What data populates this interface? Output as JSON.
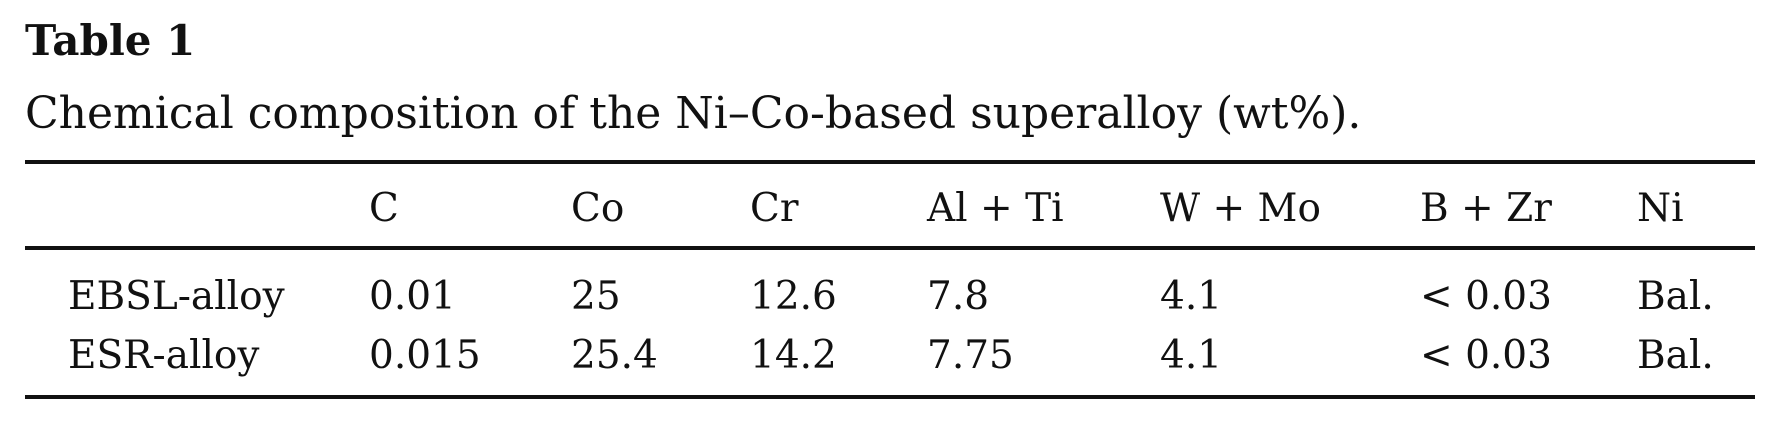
{
  "table": {
    "label": "Table 1",
    "caption": "Chemical composition of the Ni–Co-based superalloy (wt%).",
    "columns": [
      "",
      "C",
      "Co",
      "Cr",
      "Al + Ti",
      "W + Mo",
      "B + Zr",
      "Ni"
    ],
    "rows": [
      [
        "EBSL-alloy",
        "0.01",
        "25",
        "12.6",
        "7.8",
        "4.1",
        "< 0.03",
        "Bal."
      ],
      [
        "ESR-alloy",
        "0.015",
        "25.4",
        "14.2",
        "7.75",
        "4.1",
        "< 0.03",
        "Bal."
      ]
    ]
  }
}
